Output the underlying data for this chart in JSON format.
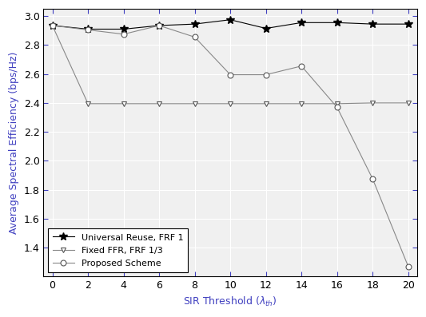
{
  "x": [
    0,
    2,
    4,
    6,
    8,
    10,
    12,
    14,
    16,
    18,
    20
  ],
  "universal_reuse": [
    2.935,
    2.91,
    2.91,
    2.935,
    2.945,
    2.975,
    2.915,
    2.955,
    2.955,
    2.945,
    2.945
  ],
  "fixed_ffr": [
    2.935,
    2.395,
    2.395,
    2.395,
    2.395,
    2.395,
    2.395,
    2.395,
    2.395,
    2.4,
    2.4
  ],
  "proposed": [
    2.935,
    2.905,
    2.875,
    2.935,
    2.855,
    2.595,
    2.595,
    2.655,
    2.37,
    1.875,
    1.27
  ],
  "xlabel": "SIR Threshold ($\\lambda_{th}$)",
  "ylabel": "Average Spectral Efficiency (bps/Hz)",
  "xlim": [
    -0.5,
    20.5
  ],
  "ylim": [
    1.2,
    3.05
  ],
  "yticks": [
    1.4,
    1.6,
    1.8,
    2.0,
    2.2,
    2.4,
    2.6,
    2.8,
    3.0
  ],
  "xticks": [
    0,
    2,
    4,
    6,
    8,
    10,
    12,
    14,
    16,
    18,
    20
  ],
  "legend": [
    "Universal Reuse, FRF 1",
    "Fixed FFR, FRF 1/3",
    "Proposed Scheme"
  ],
  "line_color": "#000000",
  "bg_color": "#ffffff",
  "plot_bg_color": "#f0f0f0",
  "grid_color": "#ffffff"
}
